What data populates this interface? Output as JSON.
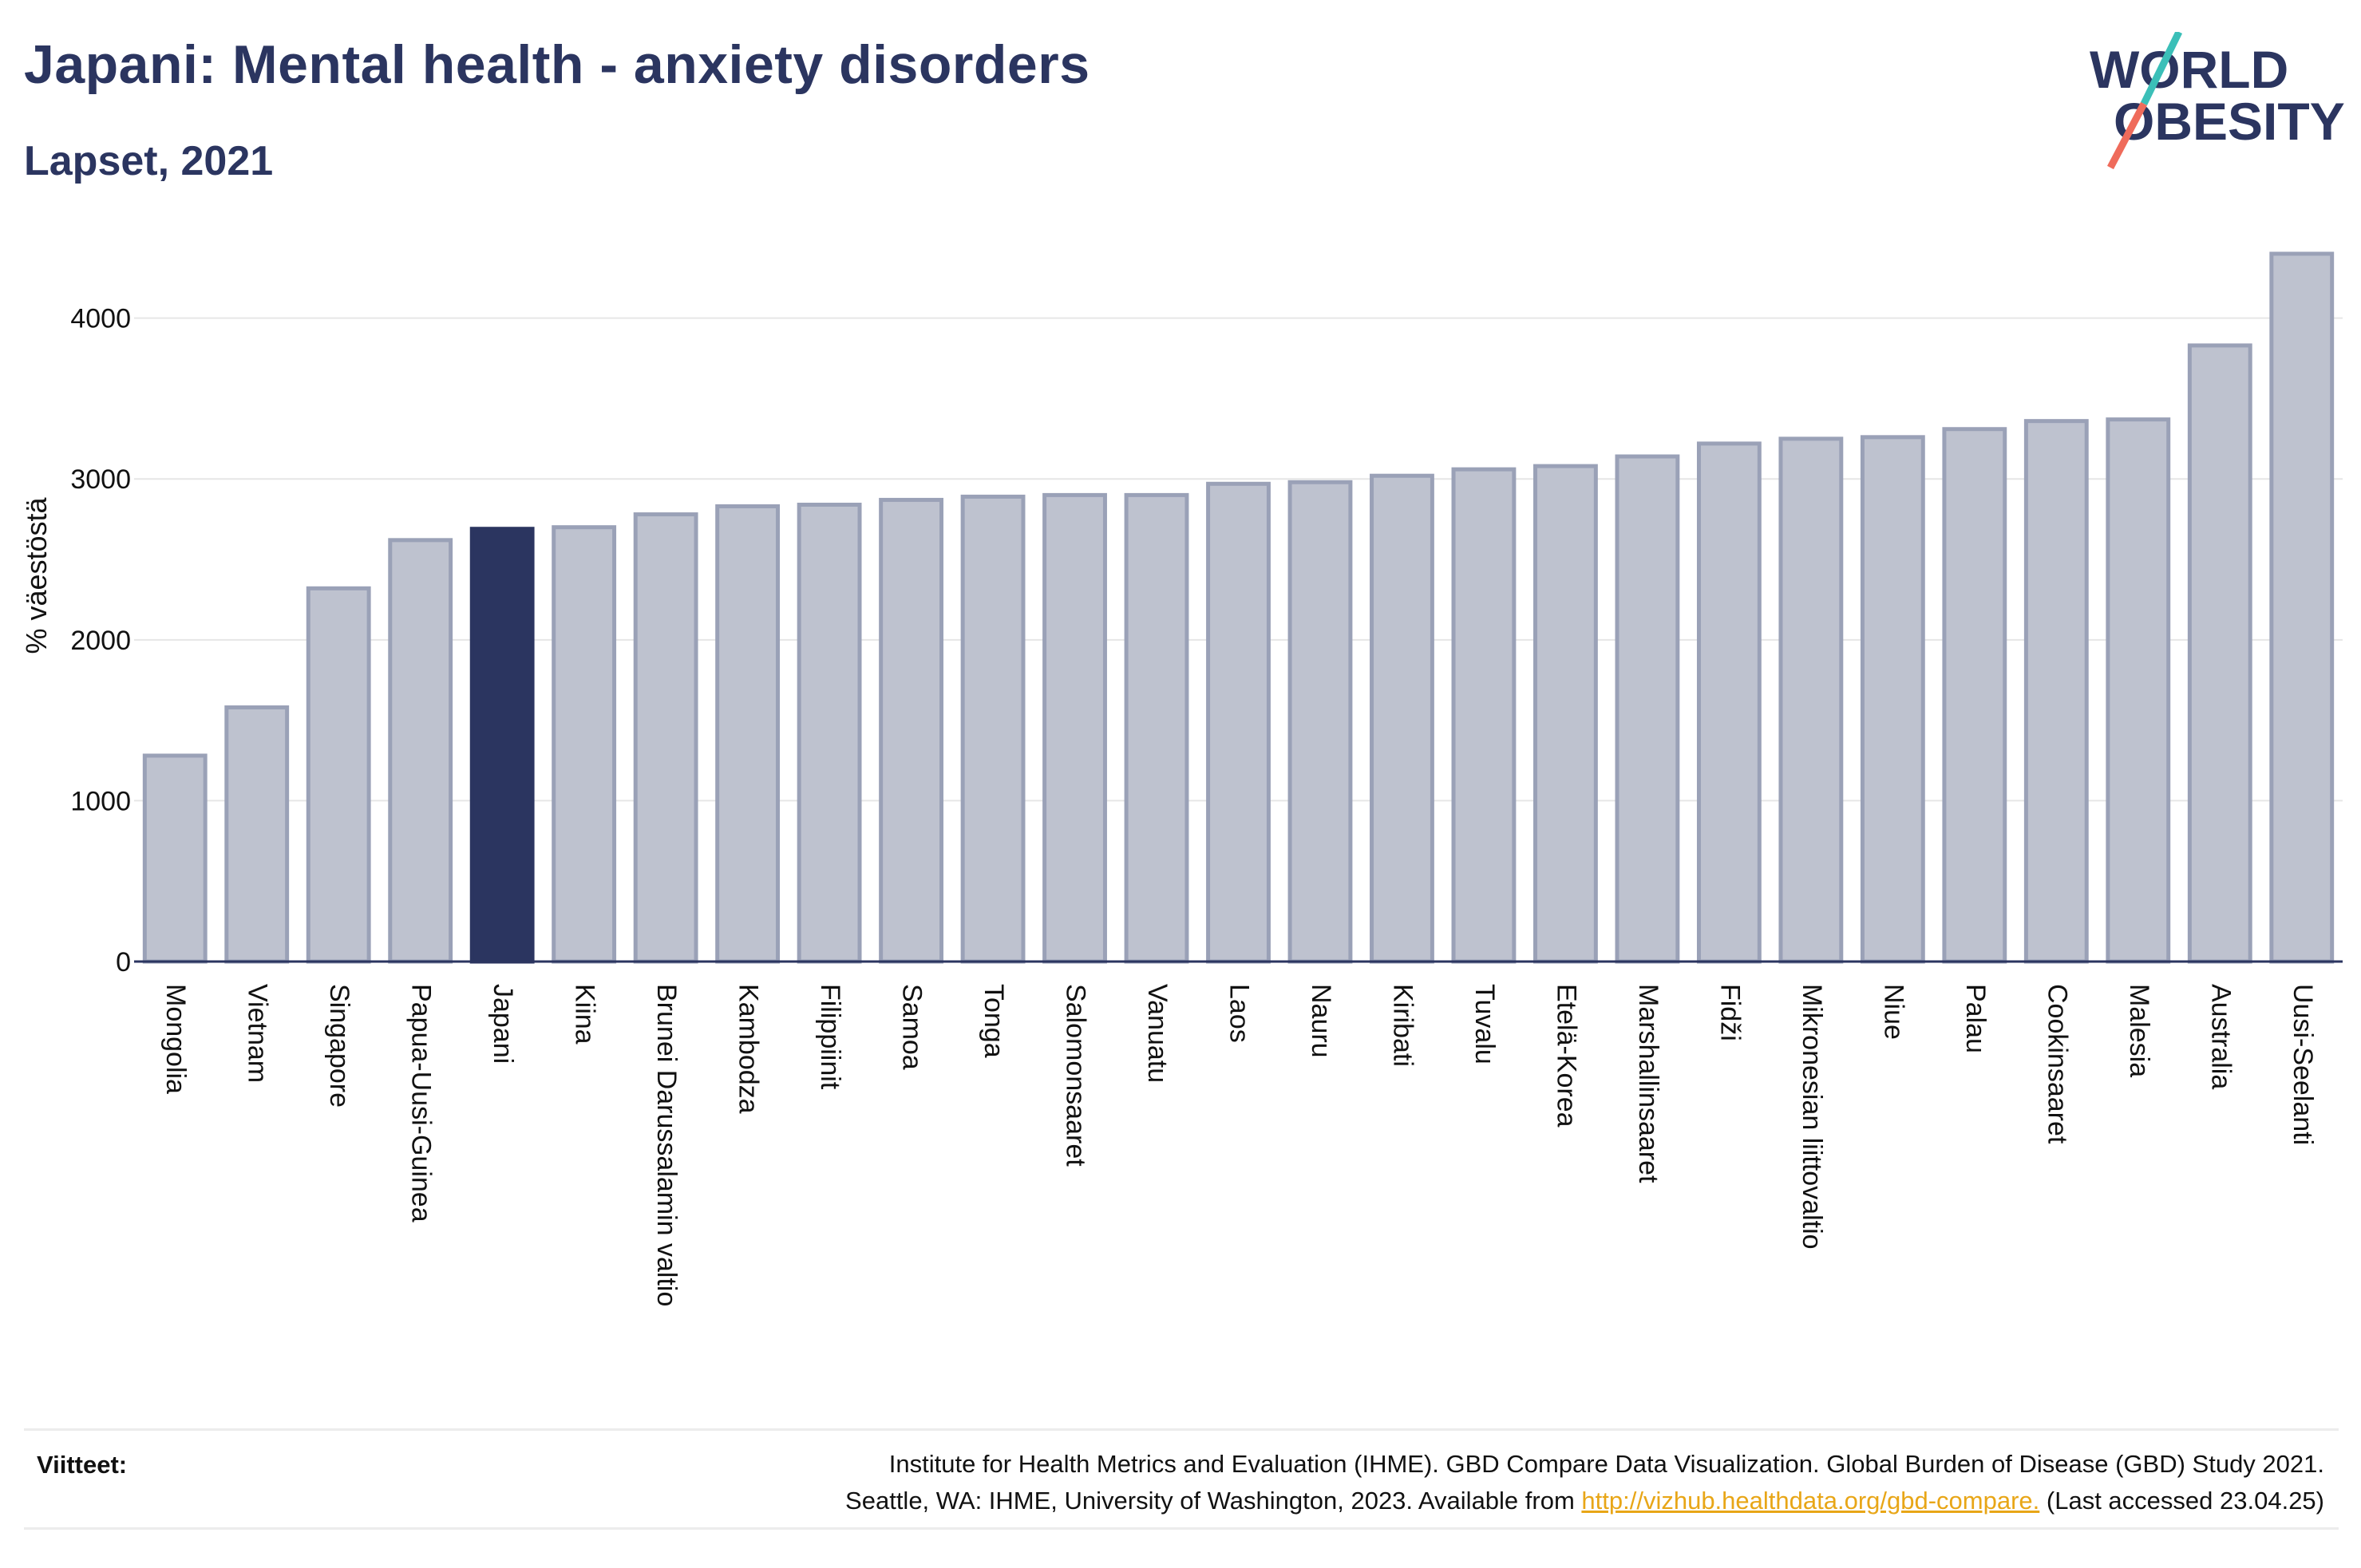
{
  "header": {
    "title": "Japani: Mental health - anxiety disorders",
    "subtitle": "Lapset, 2021"
  },
  "logo": {
    "line1": "WORLD",
    "line2": "OBESITY"
  },
  "colors": {
    "bar": "#bec2cf",
    "bar_stroke": "#9aa1b7",
    "highlight": "#2b3560",
    "text": "#2b3560",
    "grid": "#e6e6e6",
    "link": "#e8a617"
  },
  "chart_data": {
    "type": "bar",
    "ylabel": "% väestöstä",
    "ylim": [
      0,
      4400
    ],
    "yticks": [
      0,
      1000,
      2000,
      3000,
      4000
    ],
    "highlight": "Japani",
    "categories": [
      "Mongolia",
      "Vietnam",
      "Singapore",
      "Papua-Uusi-Guinea",
      "Japani",
      "Kiina",
      "Brunei Darussalamin valtio",
      "Kambodza",
      "Filippiinit",
      "Samoa",
      "Tonga",
      "Salomonsaaret",
      "Vanuatu",
      "Laos",
      "Nauru",
      "Kiribati",
      "Tuvalu",
      "Etelä-Korea",
      "Marshallinsaaret",
      "Fidži",
      "Mikronesian liittovaltio",
      "Niue",
      "Palau",
      "Cookinsaaret",
      "Malesia",
      "Australia",
      "Uusi-Seelanti"
    ],
    "values": [
      1280,
      1580,
      2320,
      2620,
      2690,
      2700,
      2780,
      2830,
      2840,
      2870,
      2890,
      2900,
      2900,
      2970,
      2980,
      3020,
      3060,
      3080,
      3140,
      3220,
      3250,
      3260,
      3310,
      3360,
      3370,
      3830,
      4400
    ]
  },
  "footer": {
    "label": "Viitteet:",
    "line1": "Institute for Health Metrics and Evaluation (IHME). GBD Compare Data Visualization. Global Burden of Disease (GBD) Study 2021.",
    "line2_prefix": "Seattle, WA: IHME, University of Washington, 2023. Available from ",
    "link": "http://vizhub.healthdata.org/gbd-compare.",
    "line2_suffix": " (Last accessed 23.04.25)"
  }
}
